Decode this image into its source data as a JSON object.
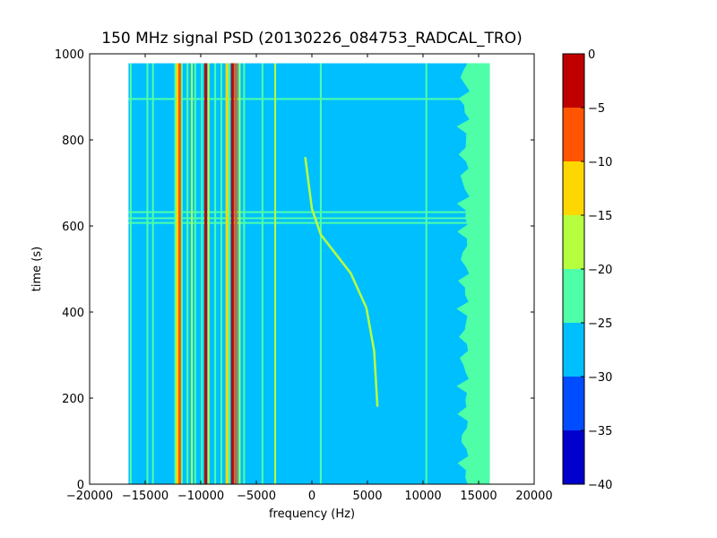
{
  "chart_data": {
    "type": "heatmap",
    "title": "150 MHz signal PSD (20130226_084753_RADCAL_TRO)",
    "xlabel": "frequency (Hz)",
    "ylabel": "time (s)",
    "xlim": [
      -20000,
      20000
    ],
    "ylim": [
      0,
      1000
    ],
    "xticks": [
      -20000,
      -15000,
      -10000,
      -5000,
      0,
      5000,
      10000,
      15000,
      20000
    ],
    "xtick_labels": [
      "−20000",
      "−15000",
      "−10000",
      "−5000",
      "0",
      "5000",
      "10000",
      "15000",
      "20000"
    ],
    "yticks": [
      0,
      200,
      400,
      600,
      800,
      1000
    ],
    "ytick_labels": [
      "0",
      "200",
      "400",
      "600",
      "800",
      "1000"
    ],
    "data_extent": {
      "x": [
        -16500,
        16000
      ],
      "y": [
        0,
        978
      ]
    },
    "background_level": -27.5,
    "colorbar": {
      "levels": [
        -40,
        -35,
        -30,
        -25,
        -20,
        -15,
        -10,
        -5,
        0
      ],
      "tick_labels": [
        "−40",
        "−35",
        "−30",
        "−25",
        "−20",
        "−15",
        "−10",
        "−5",
        "0"
      ],
      "colors": [
        "#0000cd",
        "#004cff",
        "#00bfff",
        "#4effa8",
        "#b6ff3f",
        "#ffd700",
        "#ff5500",
        "#c00000"
      ]
    },
    "vertical_lines": [
      {
        "freq": -16300,
        "level": -22
      },
      {
        "freq": -14800,
        "level": -22
      },
      {
        "freq": -14300,
        "level": -22
      },
      {
        "freq": -12300,
        "level": -22
      },
      {
        "freq": -12100,
        "level": -12
      },
      {
        "freq": -11900,
        "level": -8
      },
      {
        "freq": -11700,
        "level": -22
      },
      {
        "freq": -11200,
        "level": -22
      },
      {
        "freq": -10800,
        "level": -17
      },
      {
        "freq": -10500,
        "level": -22
      },
      {
        "freq": -9900,
        "level": -22
      },
      {
        "freq": -9550,
        "level": -3
      },
      {
        "freq": -9300,
        "level": -17
      },
      {
        "freq": -8700,
        "level": -22
      },
      {
        "freq": -8150,
        "level": -22
      },
      {
        "freq": -7650,
        "level": -12
      },
      {
        "freq": -7450,
        "level": -22
      },
      {
        "freq": -7150,
        "level": -3
      },
      {
        "freq": -6850,
        "level": -8
      },
      {
        "freq": -6500,
        "level": -17
      },
      {
        "freq": -6100,
        "level": -22
      },
      {
        "freq": -4450,
        "level": -22
      },
      {
        "freq": -3300,
        "level": -17
      },
      {
        "freq": 800,
        "level": -22
      },
      {
        "freq": 10300,
        "level": -22
      }
    ],
    "horizontal_lines": [
      {
        "time": 895,
        "level": -22
      },
      {
        "time": 632,
        "level": -22
      },
      {
        "time": 618,
        "level": -22
      },
      {
        "time": 607,
        "level": -22
      }
    ],
    "wide_band": {
      "freq_start": 13700,
      "freq_end": 16000,
      "level": -22
    },
    "drifting_tone": {
      "level": -17,
      "points": [
        [
          -600,
          760
        ],
        [
          -300,
          700
        ],
        [
          0,
          640
        ],
        [
          800,
          580
        ],
        [
          2000,
          540
        ],
        [
          3500,
          490
        ],
        [
          4900,
          410
        ],
        [
          5600,
          310
        ],
        [
          5900,
          180
        ]
      ]
    }
  }
}
